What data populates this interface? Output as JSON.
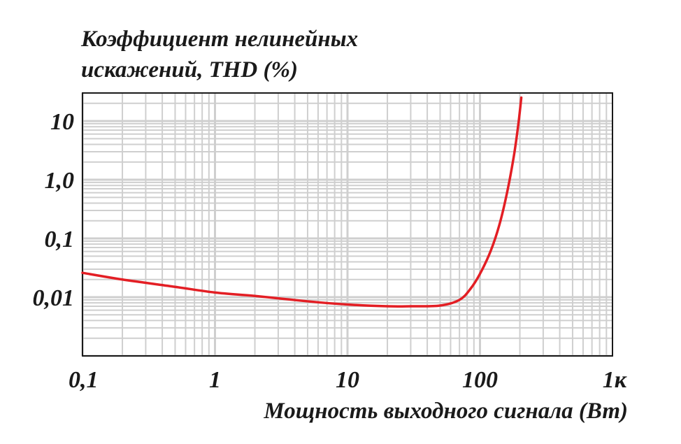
{
  "chart_data": {
    "type": "line",
    "title": "",
    "ylabel_lines": [
      "Коэффициент нелинейных",
      "искажений, THD (%)"
    ],
    "xlabel": "Мощность выходного сигнала (Вт)",
    "x_scale": "log",
    "y_scale": "log",
    "xlim": [
      0.1,
      1000
    ],
    "ylim": [
      0.001,
      30
    ],
    "x_ticks": [
      {
        "value": 0.1,
        "label": "0,1"
      },
      {
        "value": 1,
        "label": "1"
      },
      {
        "value": 10,
        "label": "10"
      },
      {
        "value": 100,
        "label": "100"
      },
      {
        "value": 1000,
        "label": "1к"
      }
    ],
    "y_ticks": [
      {
        "value": 10,
        "label": "10"
      },
      {
        "value": 1,
        "label": "1,0"
      },
      {
        "value": 0.1,
        "label": "0,1"
      },
      {
        "value": 0.01,
        "label": "0,01"
      }
    ],
    "grid": true,
    "series": [
      {
        "color": "#e31e24",
        "points": [
          [
            0.1,
            0.026
          ],
          [
            0.2,
            0.02
          ],
          [
            0.5,
            0.015
          ],
          [
            1,
            0.012
          ],
          [
            2,
            0.0105
          ],
          [
            5,
            0.0085
          ],
          [
            10,
            0.0075
          ],
          [
            20,
            0.007
          ],
          [
            30,
            0.007
          ],
          [
            50,
            0.0072
          ],
          [
            70,
            0.009
          ],
          [
            85,
            0.014
          ],
          [
            100,
            0.025
          ],
          [
            120,
            0.06
          ],
          [
            140,
            0.17
          ],
          [
            160,
            0.6
          ],
          [
            180,
            2.5
          ],
          [
            195,
            9
          ],
          [
            205,
            25
          ]
        ]
      }
    ]
  }
}
